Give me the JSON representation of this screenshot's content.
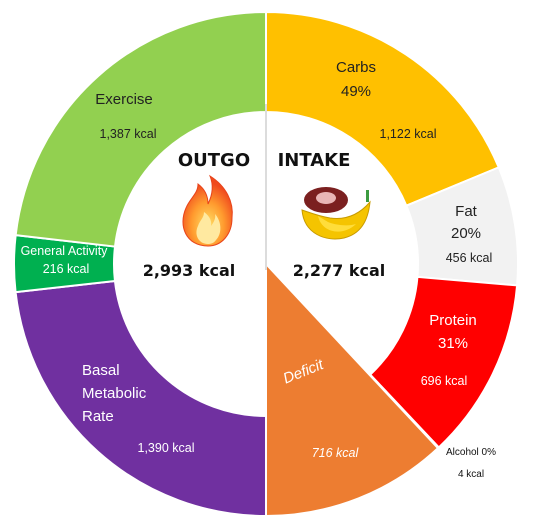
{
  "chart_data": {
    "type": "pie",
    "left_half": {
      "title": "OUTGO",
      "total": "2,993 kcal",
      "segments": [
        {
          "label": "Exercise",
          "value": 1387,
          "value_label": "1,387 kcal",
          "color": "#92D050"
        },
        {
          "label": "General Activity",
          "value": 216,
          "value_label": "216 kcal",
          "color": "#00B050"
        },
        {
          "label": "Basal Metabolic Rate",
          "value": 1390,
          "value_label": "1,390 kcal",
          "color": "#7030A0"
        }
      ]
    },
    "right_half": {
      "title": "INTAKE",
      "total": "2,277 kcal",
      "segments": [
        {
          "label": "Carbs",
          "percent": "49%",
          "value": 1122,
          "value_label": "1,122 kcal",
          "color": "#FFC000"
        },
        {
          "label": "Fat",
          "percent": "20%",
          "value": 456,
          "value_label": "456 kcal",
          "color": "#F2F2F2"
        },
        {
          "label": "Protein",
          "percent": "31%",
          "value": 696,
          "value_label": "696 kcal",
          "color": "#FF0000"
        },
        {
          "label": "Alcohol 0%",
          "value": 4,
          "value_label": "4 kcal",
          "color": "#C00000"
        },
        {
          "label": "Deficit",
          "value": 716,
          "value_label": "716 kcal",
          "color": "#ED7D31"
        }
      ]
    }
  },
  "labels": {
    "exercise": "Exercise",
    "general_activity": "General Activity",
    "bmr_line1": "Basal",
    "bmr_line2": "Metabolic",
    "bmr_line3": "Rate",
    "carbs": "Carbs",
    "fat": "Fat",
    "protein": "Protein",
    "alcohol": "Alcohol 0%",
    "deficit": "Deficit"
  },
  "icons": {
    "outgo": "flame-icon",
    "intake": "food-icon"
  }
}
